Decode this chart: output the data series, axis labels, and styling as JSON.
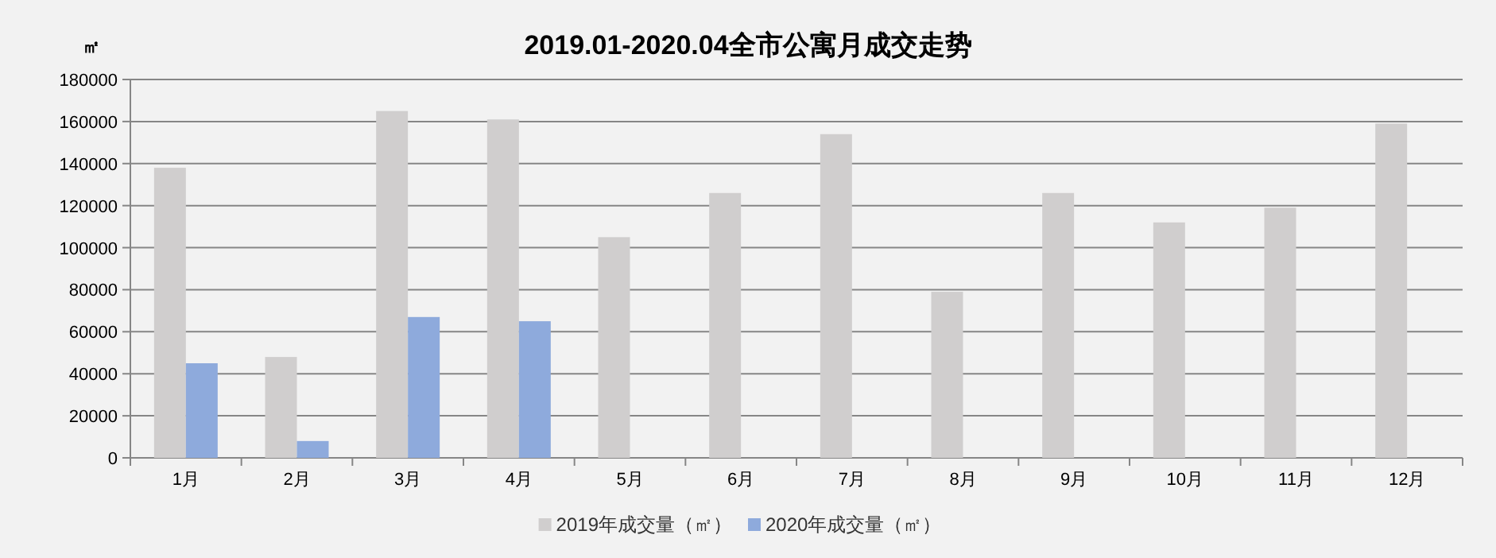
{
  "chart_data": {
    "type": "bar",
    "title": "2019.01-2020.04全市公寓月成交走势",
    "ylabel": "㎡",
    "categories": [
      "1月",
      "2月",
      "3月",
      "4月",
      "5月",
      "6月",
      "7月",
      "8月",
      "9月",
      "10月",
      "11月",
      "12月"
    ],
    "series": [
      {
        "name": "2019年成交量（㎡）",
        "color": "#d0cece",
        "values": [
          138000,
          48000,
          165000,
          161000,
          105000,
          126000,
          154000,
          79000,
          126000,
          112000,
          119000,
          159000
        ]
      },
      {
        "name": "2020年成交量（㎡）",
        "color": "#8eaadc",
        "values": [
          45000,
          8000,
          67000,
          65000,
          null,
          null,
          null,
          null,
          null,
          null,
          null,
          null
        ]
      }
    ],
    "ylim": [
      0,
      180000
    ],
    "yticks": [
      0,
      20000,
      40000,
      60000,
      80000,
      100000,
      120000,
      140000,
      160000,
      180000
    ],
    "grid": "y",
    "legend": "bottom"
  }
}
